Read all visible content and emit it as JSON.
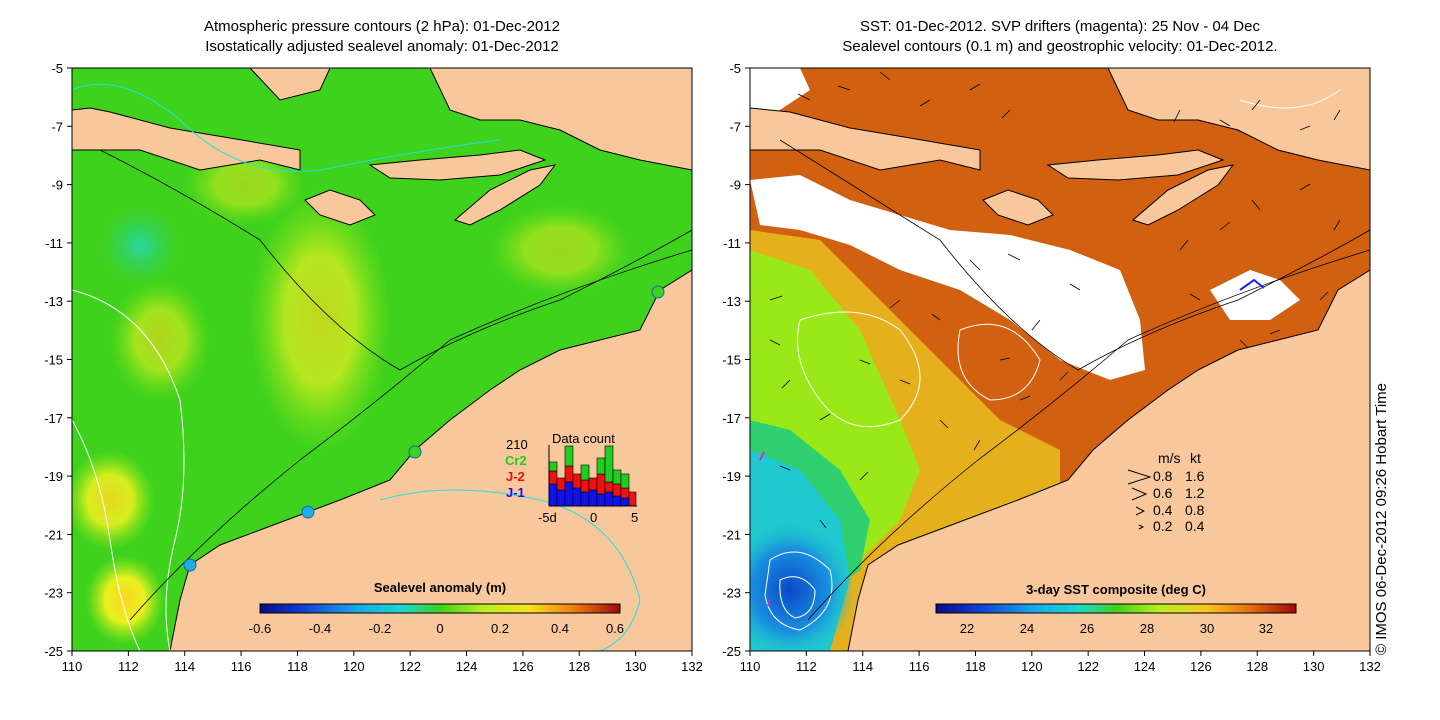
{
  "left_panel": {
    "title_line1": "Atmospheric pressure contours (2 hPa): 01-Dec-2012",
    "title_line2": "Isostatically adjusted sealevel anomaly: 01-Dec-2012",
    "colorbar": {
      "label": "Sealevel anomaly (m)",
      "ticks": [
        "-0.6",
        "-0.4",
        "-0.2",
        "0",
        "0.2",
        "0.4",
        "0.6"
      ],
      "range": [
        -0.6,
        0.6
      ]
    },
    "data_count": {
      "title": "Data count",
      "total": "210",
      "satellites": [
        {
          "label": "Cr2",
          "color": "#22cc22"
        },
        {
          "label": "J-2",
          "color": "#ee1111"
        },
        {
          "label": "J-1",
          "color": "#1111ee"
        }
      ],
      "x_ticks": [
        "-5d",
        "0",
        "5"
      ]
    }
  },
  "right_panel": {
    "title_line1": "SST: 01-Dec-2012. SVP drifters (magenta): 25 Nov - 04 Dec",
    "title_line2": "Sealevel contours (0.1 m) and geostrophic velocity: 01-Dec-2012.",
    "colorbar": {
      "label": "3-day SST composite (deg C)",
      "ticks": [
        "22",
        "24",
        "26",
        "28",
        "30",
        "32"
      ],
      "range": [
        21,
        33.5
      ]
    },
    "velocity_legend": {
      "header_ms": "m/s",
      "header_kt": "kt",
      "rows": [
        {
          "ms": "0.8",
          "kt": "1.6"
        },
        {
          "ms": "0.6",
          "kt": "1.2"
        },
        {
          "ms": "0.4",
          "kt": "0.8"
        },
        {
          "ms": "0.2",
          "kt": "0.4"
        }
      ]
    }
  },
  "axes": {
    "x_ticks": [
      "110",
      "112",
      "114",
      "116",
      "118",
      "120",
      "122",
      "124",
      "126",
      "128",
      "130",
      "132"
    ],
    "y_ticks": [
      "-5",
      "-7",
      "-9",
      "-11",
      "-13",
      "-15",
      "-17",
      "-19",
      "-21",
      "-23",
      "-25"
    ],
    "lon_range": [
      110,
      132
    ],
    "lat_range": [
      -25,
      -5
    ]
  },
  "credit": "© IMOS 06-Dec-2012 09:26 Hobart Time",
  "colors": {
    "land": "#f8c89c",
    "sla_background": "#3fd21c",
    "sst_warm": "#d85c10",
    "sst_cool": "#1d8bd6"
  }
}
